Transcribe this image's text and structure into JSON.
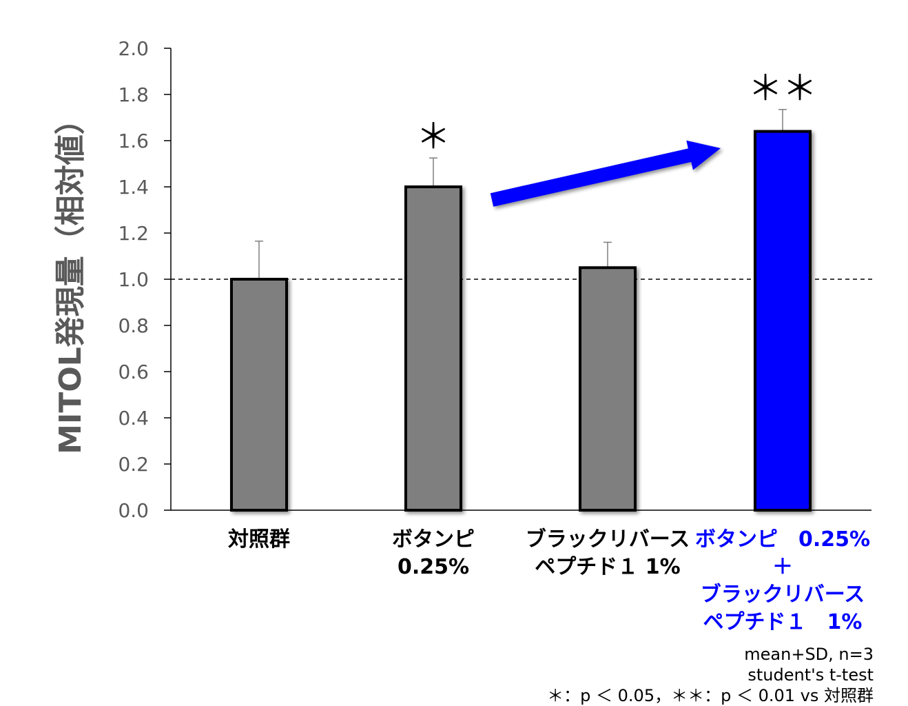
{
  "chart_data": {
    "type": "bar",
    "ylabel": "MITOL発現量（相対値）",
    "xlabel": "",
    "title": "",
    "ylim": [
      0,
      2.0
    ],
    "yticks": [
      "0.0",
      "0.2",
      "0.4",
      "0.6",
      "0.8",
      "1.0",
      "1.2",
      "1.4",
      "1.6",
      "1.8",
      "2.0"
    ],
    "reference_line": 1.0,
    "grid": false,
    "categories": [
      {
        "lines": [
          "対照群"
        ],
        "color": "#000000"
      },
      {
        "lines": [
          "ボタンピ",
          "0.25%"
        ],
        "color": "#000000"
      },
      {
        "lines": [
          "ブラックリバース",
          "ペプチド１ 1%"
        ],
        "color": "#000000"
      },
      {
        "lines": [
          "ボタンピ　0.25%",
          "＋",
          "ブラックリバース",
          "ペプチド１　1%"
        ],
        "color": "#0000ff"
      }
    ],
    "series": [
      {
        "values": [
          1.0,
          1.4,
          1.05,
          1.64
        ],
        "sd": [
          0.165,
          0.125,
          0.11,
          0.095
        ],
        "significance": [
          "",
          "＊",
          "",
          "＊＊"
        ],
        "colors": [
          "#7f7f7f",
          "#7f7f7f",
          "#7f7f7f",
          "#0000ff"
        ]
      }
    ],
    "arrow": {
      "from_category": 1,
      "to_category": 3,
      "color": "#0000ff"
    }
  },
  "notes": [
    "mean+SD, n=3",
    "student's t-test",
    "＊：p ＜ 0.05，＊＊：p ＜ 0.01 vs 対照群"
  ]
}
